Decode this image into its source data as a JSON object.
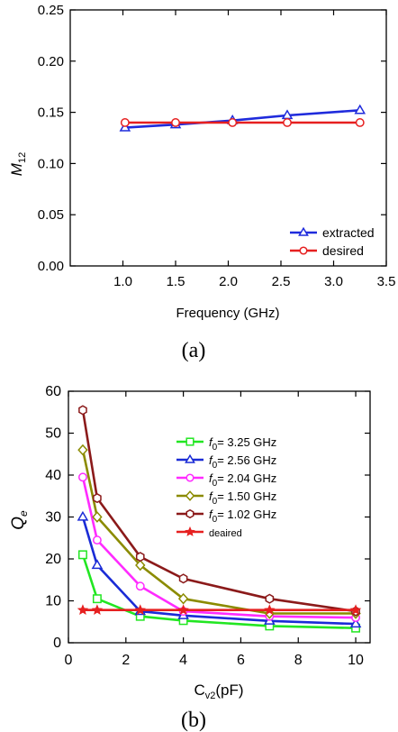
{
  "chart_data": [
    {
      "panel_label": "(a)",
      "type": "line",
      "xlabel": "Frequency (GHz)",
      "ylabel_main": "M",
      "ylabel_sub": "12",
      "xlim": [
        0.5,
        3.5
      ],
      "ylim": [
        0.0,
        0.25
      ],
      "xticks": [
        "1.0",
        "1.5",
        "2.0",
        "2.5",
        "3.0",
        "3.5"
      ],
      "yticks": [
        "0.00",
        "0.05",
        "0.10",
        "0.15",
        "0.20",
        "0.25"
      ],
      "grid": false,
      "legend_position": "bottom-right",
      "series": [
        {
          "name": "extracted",
          "color": "#1f2bdc",
          "marker": "triangle",
          "x": [
            1.02,
            1.5,
            2.04,
            2.56,
            3.25
          ],
          "y": [
            0.135,
            0.138,
            0.142,
            0.147,
            0.152
          ]
        },
        {
          "name": "desired",
          "color": "#e62020",
          "marker": "circle",
          "x": [
            1.02,
            1.5,
            2.04,
            2.56,
            3.25
          ],
          "y": [
            0.14,
            0.14,
            0.14,
            0.14,
            0.14
          ]
        }
      ]
    },
    {
      "panel_label": "(b)",
      "type": "line",
      "xlabel_main": "C",
      "xlabel_sub": "v2",
      "xlabel_tail": "(pF)",
      "ylabel_main": "Q",
      "ylabel_sub": "e",
      "xlim": [
        0,
        10.5
      ],
      "ylim": [
        0,
        60
      ],
      "xticks": [
        "0",
        "2",
        "4",
        "6",
        "8",
        "10"
      ],
      "yticks": [
        "0",
        "10",
        "20",
        "30",
        "40",
        "50",
        "60"
      ],
      "grid": false,
      "legend_position": "top-right",
      "series": [
        {
          "legend_main": "f",
          "legend_sub": "0",
          "legend_tail": "= 3.25 GHz",
          "color": "#22e622",
          "marker": "square",
          "x": [
            0.5,
            1.0,
            2.5,
            4.0,
            7.0,
            10.0
          ],
          "y": [
            21.0,
            10.5,
            6.3,
            5.3,
            4.0,
            3.5
          ]
        },
        {
          "legend_main": "f",
          "legend_sub": "0",
          "legend_tail": "= 2.56 GHz",
          "color": "#1a2bd6",
          "marker": "triangle",
          "x": [
            0.5,
            1.0,
            2.5,
            4.0,
            7.0,
            10.0
          ],
          "y": [
            30.0,
            18.5,
            7.5,
            6.5,
            5.2,
            4.5
          ]
        },
        {
          "legend_main": "f",
          "legend_sub": "0",
          "legend_tail": "= 2.04 GHz",
          "color": "#ff2bff",
          "marker": "circle",
          "x": [
            0.5,
            1.0,
            2.5,
            4.0,
            7.0,
            10.0
          ],
          "y": [
            39.5,
            24.5,
            13.5,
            7.5,
            6.3,
            6.0
          ]
        },
        {
          "legend_main": "f",
          "legend_sub": "0",
          "legend_tail": "= 1.50 GHz",
          "color": "#8b8b00",
          "marker": "diamond",
          "x": [
            0.5,
            1.0,
            2.5,
            4.0,
            7.0,
            10.0
          ],
          "y": [
            46.0,
            30.0,
            18.5,
            10.5,
            7.0,
            7.0
          ]
        },
        {
          "legend_main": "f",
          "legend_sub": "0",
          "legend_tail": "= 1.02 GHz",
          "color": "#8b1a1a",
          "marker": "hexagon",
          "x": [
            0.5,
            1.0,
            2.5,
            4.0,
            7.0,
            10.0
          ],
          "y": [
            55.5,
            34.5,
            20.5,
            15.3,
            10.5,
            7.5
          ]
        },
        {
          "legend_main": "deaired",
          "legend_sub": "",
          "legend_tail": "",
          "color": "#e62020",
          "marker": "star",
          "x": [
            0.5,
            1.0,
            2.5,
            4.0,
            7.0,
            10.0
          ],
          "y": [
            7.8,
            7.8,
            7.8,
            7.8,
            7.8,
            7.8
          ]
        }
      ]
    }
  ]
}
